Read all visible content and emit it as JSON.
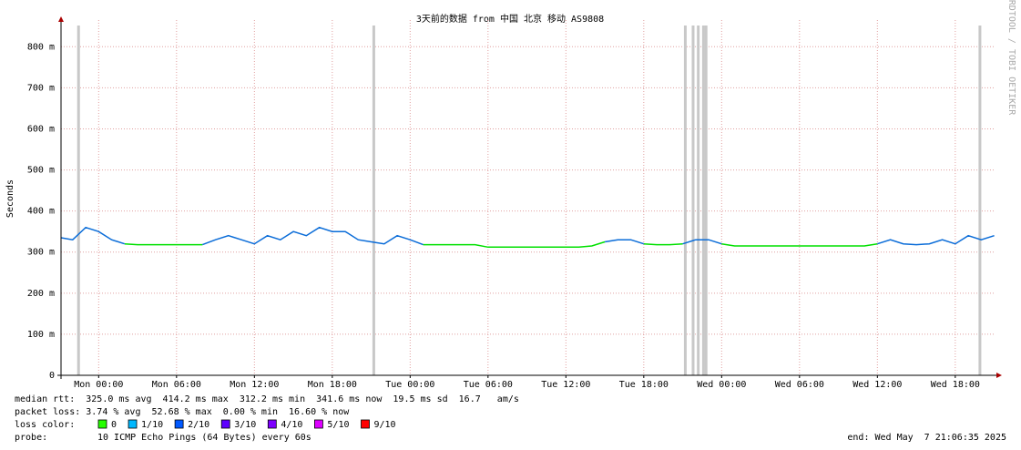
{
  "chart_data": {
    "type": "line",
    "title": "3天前的数据 from 中国 北京 移动 AS9808",
    "y_label": "Seconds",
    "side_text": "RRDTOOL / TOBI OETIKER",
    "xlim": [
      -2.9,
      69.1
    ],
    "xticks": [
      {
        "value": 0,
        "label": "Mon 00:00"
      },
      {
        "value": 6,
        "label": "Mon 06:00"
      },
      {
        "value": 12,
        "label": "Mon 12:00"
      },
      {
        "value": 18,
        "label": "Mon 18:00"
      },
      {
        "value": 24,
        "label": "Tue 00:00"
      },
      {
        "value": 30,
        "label": "Tue 06:00"
      },
      {
        "value": 36,
        "label": "Tue 12:00"
      },
      {
        "value": 42,
        "label": "Tue 18:00"
      },
      {
        "value": 48,
        "label": "Wed 00:00"
      },
      {
        "value": 54,
        "label": "Wed 06:00"
      },
      {
        "value": 60,
        "label": "Wed 12:00"
      },
      {
        "value": 66,
        "label": "Wed 18:00"
      }
    ],
    "ylim": [
      0,
      0.865
    ],
    "yticks": [
      0,
      {
        "value": 0.1,
        "label": "100 m"
      },
      {
        "value": 0.2,
        "label": "200 m"
      },
      {
        "value": 0.3,
        "label": "300 m"
      },
      {
        "value": 0.4,
        "label": "400 m"
      },
      {
        "value": 0.5,
        "label": "500 m"
      },
      {
        "value": 0.6,
        "label": "600 m"
      },
      {
        "value": 0.7,
        "label": "700 m"
      },
      {
        "value": 0.8,
        "label": "800 m"
      }
    ],
    "grid": true,
    "x": [
      -2.9,
      -2,
      -1,
      0,
      1,
      2,
      3,
      4,
      5,
      6,
      7,
      8,
      9,
      10,
      11,
      12,
      13,
      14,
      15,
      16,
      17,
      18,
      19,
      20,
      21,
      22,
      23,
      24,
      25,
      26,
      27,
      28,
      29,
      30,
      31,
      32,
      33,
      34,
      35,
      36,
      37,
      38,
      39,
      40,
      41,
      42,
      43,
      44,
      45,
      46,
      47,
      48,
      49,
      50,
      51,
      52,
      53,
      54,
      55,
      56,
      57,
      58,
      59,
      60,
      61,
      62,
      63,
      64,
      65,
      66,
      67,
      68,
      69
    ],
    "series": [
      {
        "color": "#00e000",
        "values": [
          null,
          null,
          null,
          null,
          null,
          0.32,
          0.318,
          0.318,
          0.318,
          0.318,
          0.318,
          0.318,
          null,
          null,
          null,
          null,
          null,
          null,
          null,
          null,
          null,
          null,
          null,
          null,
          null,
          null,
          null,
          null,
          0.318,
          0.318,
          0.318,
          0.318,
          0.318,
          0.312,
          0.312,
          0.312,
          0.312,
          0.312,
          0.312,
          0.312,
          0.312,
          0.315,
          0.325,
          null,
          null,
          0.32,
          0.318,
          0.318,
          0.32,
          null,
          null,
          0.32,
          0.315,
          0.315,
          0.315,
          0.315,
          0.315,
          0.315,
          0.315,
          0.315,
          0.315,
          0.315,
          0.315,
          0.32,
          null,
          null,
          null,
          null,
          null,
          null,
          null,
          null,
          null
        ]
      },
      {
        "color": "#0a6cd8",
        "values": [
          0.335,
          0.33,
          0.36,
          0.35,
          0.33,
          0.32,
          null,
          null,
          null,
          null,
          null,
          0.318,
          0.33,
          0.34,
          0.33,
          0.32,
          0.34,
          0.33,
          0.35,
          0.34,
          0.36,
          0.35,
          0.35,
          0.33,
          0.325,
          0.32,
          0.34,
          0.33,
          0.318,
          null,
          null,
          null,
          null,
          null,
          null,
          null,
          null,
          null,
          null,
          null,
          null,
          null,
          0.325,
          0.33,
          0.33,
          0.32,
          null,
          null,
          0.32,
          0.33,
          0.33,
          0.32,
          null,
          null,
          null,
          null,
          null,
          null,
          null,
          null,
          null,
          null,
          null,
          0.32,
          0.33,
          0.32,
          0.318,
          0.32,
          0.33,
          0.32,
          0.34,
          0.33,
          0.34
        ]
      }
    ],
    "loss_bars_x": [
      -1.55,
      21.2,
      45.2,
      45.8,
      46.2,
      46.6,
      46.8,
      67.9
    ],
    "loss_bar_color": "#c8c8c8",
    "stats": [
      "median rtt:  325.0 ms avg  414.2 ms max  312.2 ms min  341.6 ms now  19.5 ms sd  16.7   am/s",
      "packet loss: 3.74 % avg  52.68 % max  0.00 % min  16.60 % now"
    ],
    "loss_legend_title": "loss color:",
    "loss_legend": [
      {
        "label": "0",
        "color": "#26ff00"
      },
      {
        "label": "1/10",
        "color": "#00b8ff"
      },
      {
        "label": "2/10",
        "color": "#0059ff"
      },
      {
        "label": "3/10",
        "color": "#5e00ff"
      },
      {
        "label": "4/10",
        "color": "#7e00ff"
      },
      {
        "label": "5/10",
        "color": "#dd00ff"
      },
      {
        "label": "9/10",
        "color": "#ff0000"
      }
    ],
    "probe_label": "probe:",
    "probe": "10 ICMP Echo Pings (64 Bytes) every 60s",
    "end": "end: Wed May  7 21:06:35 2025"
  }
}
